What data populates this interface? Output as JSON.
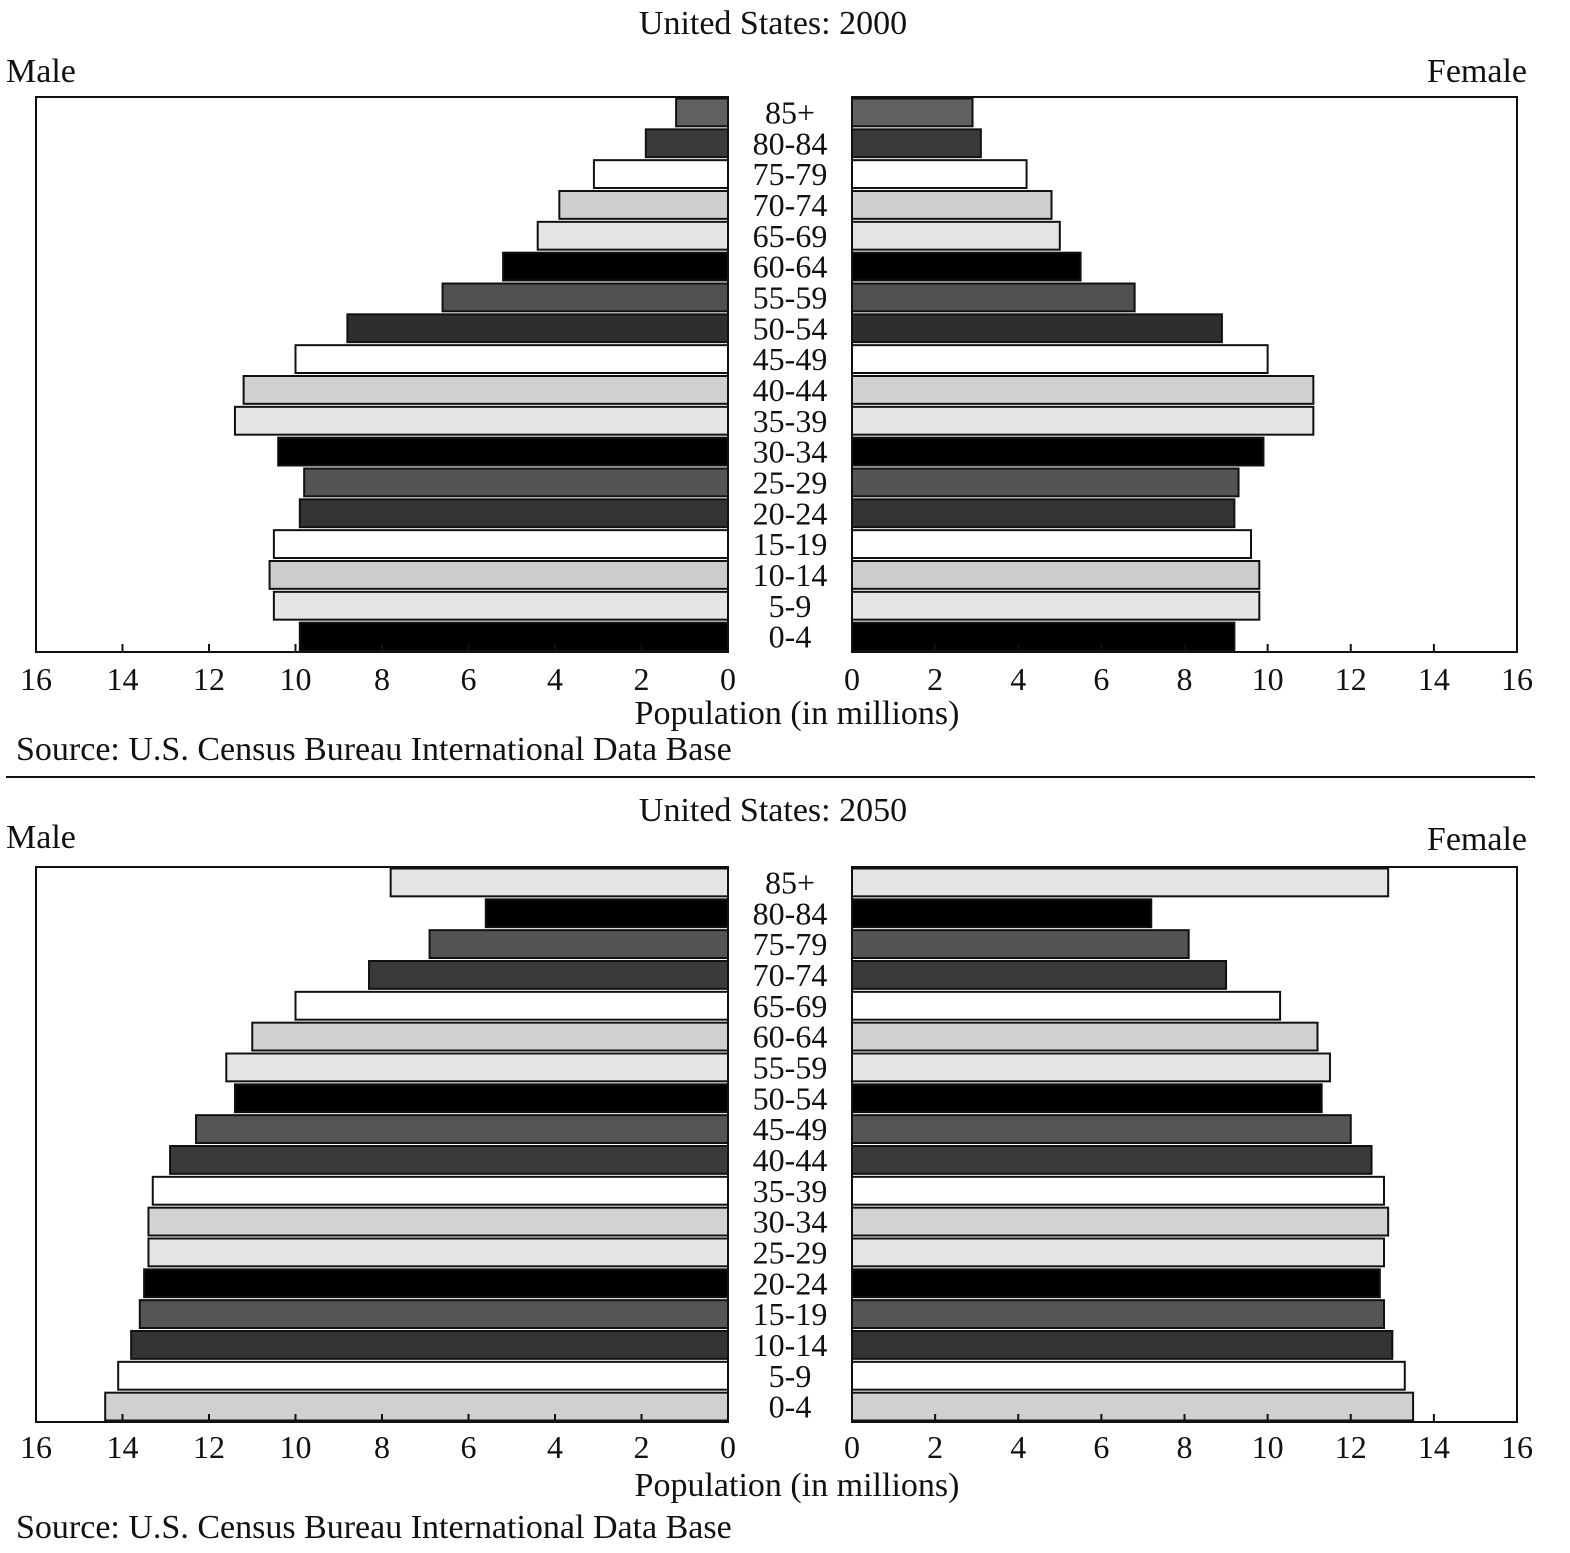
{
  "chart_data": [
    {
      "type": "bar",
      "orientation": "horizontal-pyramid",
      "title": "United States: 2000",
      "left_label": "Male",
      "right_label": "Female",
      "xlabel": "Population (in millions)",
      "source": "Source: U.S. Census Bureau International Data Base",
      "xlim": [
        0,
        16
      ],
      "ticks": [
        "16",
        "14",
        "12",
        "10",
        "8",
        "6",
        "4",
        "2",
        "0"
      ],
      "right_ticks": [
        "0",
        "2",
        "4",
        "6",
        "8",
        "10",
        "12",
        "14",
        "16"
      ],
      "categories": [
        "85+",
        "80-84",
        "75-79",
        "70-74",
        "65-69",
        "60-64",
        "55-59",
        "50-54",
        "45-49",
        "40-44",
        "35-39",
        "30-34",
        "25-29",
        "20-24",
        "15-19",
        "10-14",
        "5-9",
        "0-4"
      ],
      "series": [
        {
          "name": "Male",
          "values": [
            1.2,
            1.9,
            3.1,
            3.9,
            4.4,
            5.2,
            6.6,
            8.8,
            10.0,
            11.2,
            11.4,
            10.4,
            9.8,
            9.9,
            10.5,
            10.6,
            10.5,
            9.9
          ]
        },
        {
          "name": "Female",
          "values": [
            2.9,
            3.1,
            4.2,
            4.8,
            5.0,
            5.5,
            6.8,
            8.9,
            10.0,
            11.1,
            11.1,
            9.9,
            9.3,
            9.2,
            9.6,
            9.8,
            9.8,
            9.2
          ]
        }
      ],
      "shades": [
        "#606060",
        "#3a3a3a",
        "#ffffff",
        "#cfcfcf",
        "#e4e4e4",
        "#000000",
        "#505050",
        "#2e2e2e",
        "#ffffff",
        "#d0d0d0",
        "#e6e6e6",
        "#000000",
        "#545454",
        "#333333",
        "#ffffff",
        "#cccccc",
        "#e6e6e6",
        "#000000"
      ]
    },
    {
      "type": "bar",
      "orientation": "horizontal-pyramid",
      "title": "United States: 2050",
      "left_label": "Male",
      "right_label": "Female",
      "xlabel": "Population (in millions)",
      "source": "Source: U.S. Census Bureau International Data Base",
      "xlim": [
        0,
        16
      ],
      "ticks": [
        "16",
        "14",
        "12",
        "10",
        "8",
        "6",
        "4",
        "2",
        "0"
      ],
      "right_ticks": [
        "0",
        "2",
        "4",
        "6",
        "8",
        "10",
        "12",
        "14",
        "16"
      ],
      "categories": [
        "85+",
        "80-84",
        "75-79",
        "70-74",
        "65-69",
        "60-64",
        "55-59",
        "50-54",
        "45-49",
        "40-44",
        "35-39",
        "30-34",
        "25-29",
        "20-24",
        "15-19",
        "10-14",
        "5-9",
        "0-4"
      ],
      "series": [
        {
          "name": "Male",
          "values": [
            7.8,
            5.6,
            6.9,
            8.3,
            10.0,
            11.0,
            11.6,
            11.4,
            12.3,
            12.9,
            13.3,
            13.4,
            13.4,
            13.5,
            13.6,
            13.8,
            14.1,
            14.4
          ]
        },
        {
          "name": "Female",
          "values": [
            12.9,
            7.2,
            8.1,
            9.0,
            10.3,
            11.2,
            11.5,
            11.3,
            12.0,
            12.5,
            12.8,
            12.9,
            12.8,
            12.7,
            12.8,
            13.0,
            13.3,
            13.5
          ]
        }
      ],
      "shades": [
        "#e4e4e4",
        "#000000",
        "#545454",
        "#3a3a3a",
        "#ffffff",
        "#d0d0d0",
        "#e6e6e6",
        "#000000",
        "#555555",
        "#3a3a3a",
        "#ffffff",
        "#d2d2d2",
        "#e4e4e4",
        "#000000",
        "#555555",
        "#333333",
        "#ffffff",
        "#d0d0d0"
      ]
    }
  ]
}
